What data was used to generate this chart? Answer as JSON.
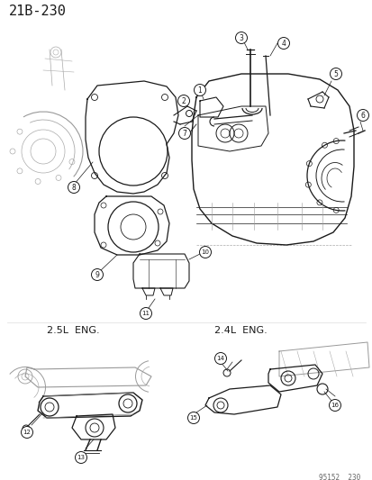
{
  "title": "21B-230",
  "footer": "95152  230",
  "bg_color": "#ffffff",
  "label_25L": "2.5L  ENG.",
  "label_24L": "2.4L  ENG.",
  "line_color": "#1a1a1a",
  "font_size_title": 11,
  "font_size_label": 7.5,
  "font_size_number": 5.5,
  "font_size_footer": 5.5,
  "gray": "#888888",
  "lightgray": "#bbbbbb"
}
